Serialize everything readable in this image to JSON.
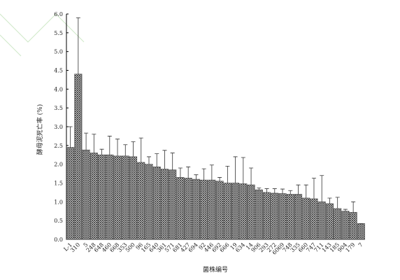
{
  "chart_data": {
    "type": "bar",
    "x_label": "菌株编号",
    "y_label": "酵母泥死亡率 (%)",
    "categories": [
      "L-1",
      "310",
      "5",
      "248",
      "648",
      "460",
      "668",
      "353",
      "500",
      "96",
      "165",
      "640",
      "361",
      "571",
      "681",
      "427",
      "694",
      "92",
      "446",
      "692",
      "666",
      "19",
      "634",
      "14",
      "906",
      "293",
      "272",
      "6069",
      "748",
      "335",
      "660",
      "747",
      "711",
      "143",
      "185",
      "904",
      "179",
      "7"
    ],
    "values": [
      2.45,
      4.4,
      2.38,
      2.3,
      2.25,
      2.25,
      2.22,
      2.22,
      2.2,
      2.05,
      2.0,
      1.93,
      1.87,
      1.85,
      1.65,
      1.63,
      1.6,
      1.58,
      1.58,
      1.55,
      1.5,
      1.5,
      1.48,
      1.45,
      1.32,
      1.25,
      1.23,
      1.22,
      1.2,
      1.2,
      1.1,
      1.08,
      1.0,
      0.95,
      0.82,
      0.75,
      0.72,
      0.42
    ],
    "errors": [
      0.55,
      1.5,
      0.45,
      0.5,
      0.15,
      0.5,
      0.45,
      0.3,
      0.4,
      0.65,
      0.2,
      0.35,
      0.5,
      0.45,
      0.25,
      0.3,
      0.12,
      0.3,
      0.4,
      0.1,
      0.45,
      0.7,
      0.7,
      0.45,
      0.05,
      0.1,
      0.12,
      0.12,
      0.1,
      0.25,
      0.35,
      0.55,
      0.7,
      0.15,
      0.3,
      0.05,
      0.28,
      0
    ],
    "color": "#555555",
    "ylim": [
      0,
      6
    ],
    "yticks": [
      {
        "value": 0,
        "label": "0.0"
      },
      {
        "value": 0.5,
        "label": "0.5"
      },
      {
        "value": 1,
        "label": "1.0"
      },
      {
        "value": 1.5,
        "label": "1.5"
      },
      {
        "value": 2,
        "label": "2.0"
      },
      {
        "value": 2.5,
        "label": "2.5"
      },
      {
        "value": 3,
        "label": "3.0"
      },
      {
        "value": 3.5,
        "label": "3.5"
      },
      {
        "value": 4,
        "label": "4.0"
      },
      {
        "value": 4.5,
        "label": "4.5"
      },
      {
        "value": 5,
        "label": "5.0"
      },
      {
        "value": 5.5,
        "label": "5.5"
      },
      {
        "value": 6,
        "label": "6.0"
      }
    ]
  }
}
